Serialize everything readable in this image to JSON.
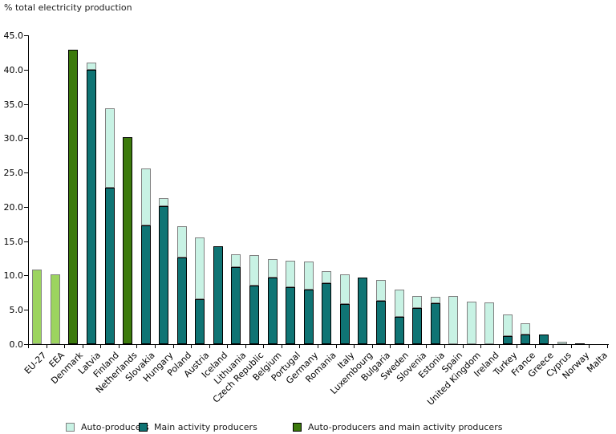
{
  "title": "% total electricity production",
  "legend": {
    "items": [
      {
        "id": "auto-producers",
        "label": "Auto-producers",
        "color": "#C8F2E4",
        "border": "#808080"
      },
      {
        "id": "main-activity-producers",
        "label": "Main activity producers",
        "color": "#0F7474",
        "border": "#000000"
      },
      {
        "id": "auto-and-main-producers",
        "label": "Auto-producers and main activity producers",
        "color": "#3C7A0C",
        "border": "#000000"
      }
    ]
  },
  "colors": {
    "auto_producers": "#C8F2E4",
    "main_activity_producers": "#0F7474",
    "combined_producers": "#3C7A0C",
    "eu_aggregate": "#9CD45F",
    "light_border": "#808080",
    "dark_border": "#000000",
    "axis": "#000000",
    "background": "#FFFFFF"
  },
  "chart_data": {
    "type": "bar",
    "stacked": true,
    "title": "% total electricity production",
    "xlabel": "",
    "ylabel": "% total electricity production",
    "ylim": [
      0,
      45
    ],
    "ytick_step": 5,
    "ytick_labels": [
      "45.0",
      "40.0",
      "35.0",
      "30.0",
      "25.0",
      "20.0",
      "15.0",
      "10.0",
      "5.0",
      "0.0"
    ],
    "grid": false,
    "legend_position": "bottom",
    "categories": [
      "EU-27",
      "EEA",
      "Denmark",
      "Latvia",
      "Finland",
      "Netherlands",
      "Slovakia",
      "Hungary",
      "Poland",
      "Austria",
      "Iceland",
      "Lithuania",
      "Czech Republic",
      "Belgium",
      "Portugal",
      "Germany",
      "Romania",
      "Italy",
      "Luxembourg",
      "Bulgaria",
      "Sweden",
      "Slovenia",
      "Estonia",
      "Spain",
      "United Kingdom",
      "Ireland",
      "Turkey",
      "France",
      "Greece",
      "Cyprus",
      "Norway",
      "Malta"
    ],
    "series": [
      {
        "name": "Auto-producers",
        "values": [
          null,
          null,
          null,
          1.0,
          11.6,
          null,
          8.3,
          1.2,
          4.6,
          9.0,
          0,
          1.9,
          4.4,
          2.7,
          3.9,
          4.1,
          1.7,
          4.3,
          0,
          3.0,
          4.0,
          1.7,
          0.9,
          7.0,
          6.2,
          6.1,
          3.2,
          1.6,
          0,
          0.3,
          0,
          0
        ]
      },
      {
        "name": "Main activity producers",
        "values": [
          null,
          null,
          null,
          40.0,
          22.8,
          null,
          17.3,
          20.1,
          12.6,
          6.5,
          14.3,
          11.2,
          8.5,
          9.7,
          8.3,
          7.9,
          8.9,
          5.9,
          9.7,
          6.3,
          4.0,
          5.3,
          6.0,
          0,
          0,
          0,
          1.2,
          1.4,
          1.4,
          0,
          0.1,
          0
        ]
      },
      {
        "name": "Auto-producers and main activity producers",
        "values": [
          10.9,
          10.2,
          42.9,
          null,
          null,
          30.1,
          null,
          null,
          null,
          null,
          null,
          null,
          null,
          null,
          null,
          null,
          null,
          null,
          null,
          null,
          null,
          null,
          null,
          null,
          null,
          null,
          null,
          null,
          null,
          null,
          null,
          null
        ]
      }
    ],
    "bars": [
      {
        "country": "EU-27",
        "style": "aggregate",
        "total": 10.9
      },
      {
        "country": "EEA",
        "style": "aggregate",
        "total": 10.2
      },
      {
        "country": "Denmark",
        "style": "combined",
        "total": 42.9
      },
      {
        "country": "Latvia",
        "style": "stacked",
        "main": 40.0,
        "auto": 1.0
      },
      {
        "country": "Finland",
        "style": "stacked",
        "main": 22.8,
        "auto": 11.6
      },
      {
        "country": "Netherlands",
        "style": "combined",
        "total": 30.1
      },
      {
        "country": "Slovakia",
        "style": "stacked",
        "main": 17.3,
        "auto": 8.3
      },
      {
        "country": "Hungary",
        "style": "stacked",
        "main": 20.1,
        "auto": 1.2
      },
      {
        "country": "Poland",
        "style": "stacked",
        "main": 12.6,
        "auto": 4.6
      },
      {
        "country": "Austria",
        "style": "stacked",
        "main": 6.5,
        "auto": 9.0
      },
      {
        "country": "Iceland",
        "style": "stacked",
        "main": 14.3,
        "auto": 0
      },
      {
        "country": "Lithuania",
        "style": "stacked",
        "main": 11.2,
        "auto": 1.9
      },
      {
        "country": "Czech Republic",
        "style": "stacked",
        "main": 8.5,
        "auto": 4.4
      },
      {
        "country": "Belgium",
        "style": "stacked",
        "main": 9.7,
        "auto": 2.7
      },
      {
        "country": "Portugal",
        "style": "stacked",
        "main": 8.3,
        "auto": 3.9
      },
      {
        "country": "Germany",
        "style": "stacked",
        "main": 7.9,
        "auto": 4.1
      },
      {
        "country": "Romania",
        "style": "stacked",
        "main": 8.9,
        "auto": 1.7
      },
      {
        "country": "Italy",
        "style": "stacked",
        "main": 5.9,
        "auto": 4.3
      },
      {
        "country": "Luxembourg",
        "style": "stacked",
        "main": 9.7,
        "auto": 0
      },
      {
        "country": "Bulgaria",
        "style": "stacked",
        "main": 6.3,
        "auto": 3.0
      },
      {
        "country": "Sweden",
        "style": "stacked",
        "main": 4.0,
        "auto": 4.0
      },
      {
        "country": "Slovenia",
        "style": "stacked",
        "main": 5.3,
        "auto": 1.7
      },
      {
        "country": "Estonia",
        "style": "stacked",
        "main": 6.0,
        "auto": 0.9
      },
      {
        "country": "Spain",
        "style": "stacked",
        "main": 0,
        "auto": 7.0
      },
      {
        "country": "United Kingdom",
        "style": "stacked",
        "main": 0,
        "auto": 6.2
      },
      {
        "country": "Ireland",
        "style": "stacked",
        "main": 0,
        "auto": 6.1
      },
      {
        "country": "Turkey",
        "style": "stacked",
        "main": 1.2,
        "auto": 3.2
      },
      {
        "country": "France",
        "style": "stacked",
        "main": 1.4,
        "auto": 1.6
      },
      {
        "country": "Greece",
        "style": "stacked",
        "main": 1.4,
        "auto": 0
      },
      {
        "country": "Cyprus",
        "style": "stacked",
        "main": 0,
        "auto": 0.3
      },
      {
        "country": "Norway",
        "style": "stacked",
        "main": 0.1,
        "auto": 0
      },
      {
        "country": "Malta",
        "style": "stacked",
        "main": 0,
        "auto": 0
      }
    ]
  }
}
